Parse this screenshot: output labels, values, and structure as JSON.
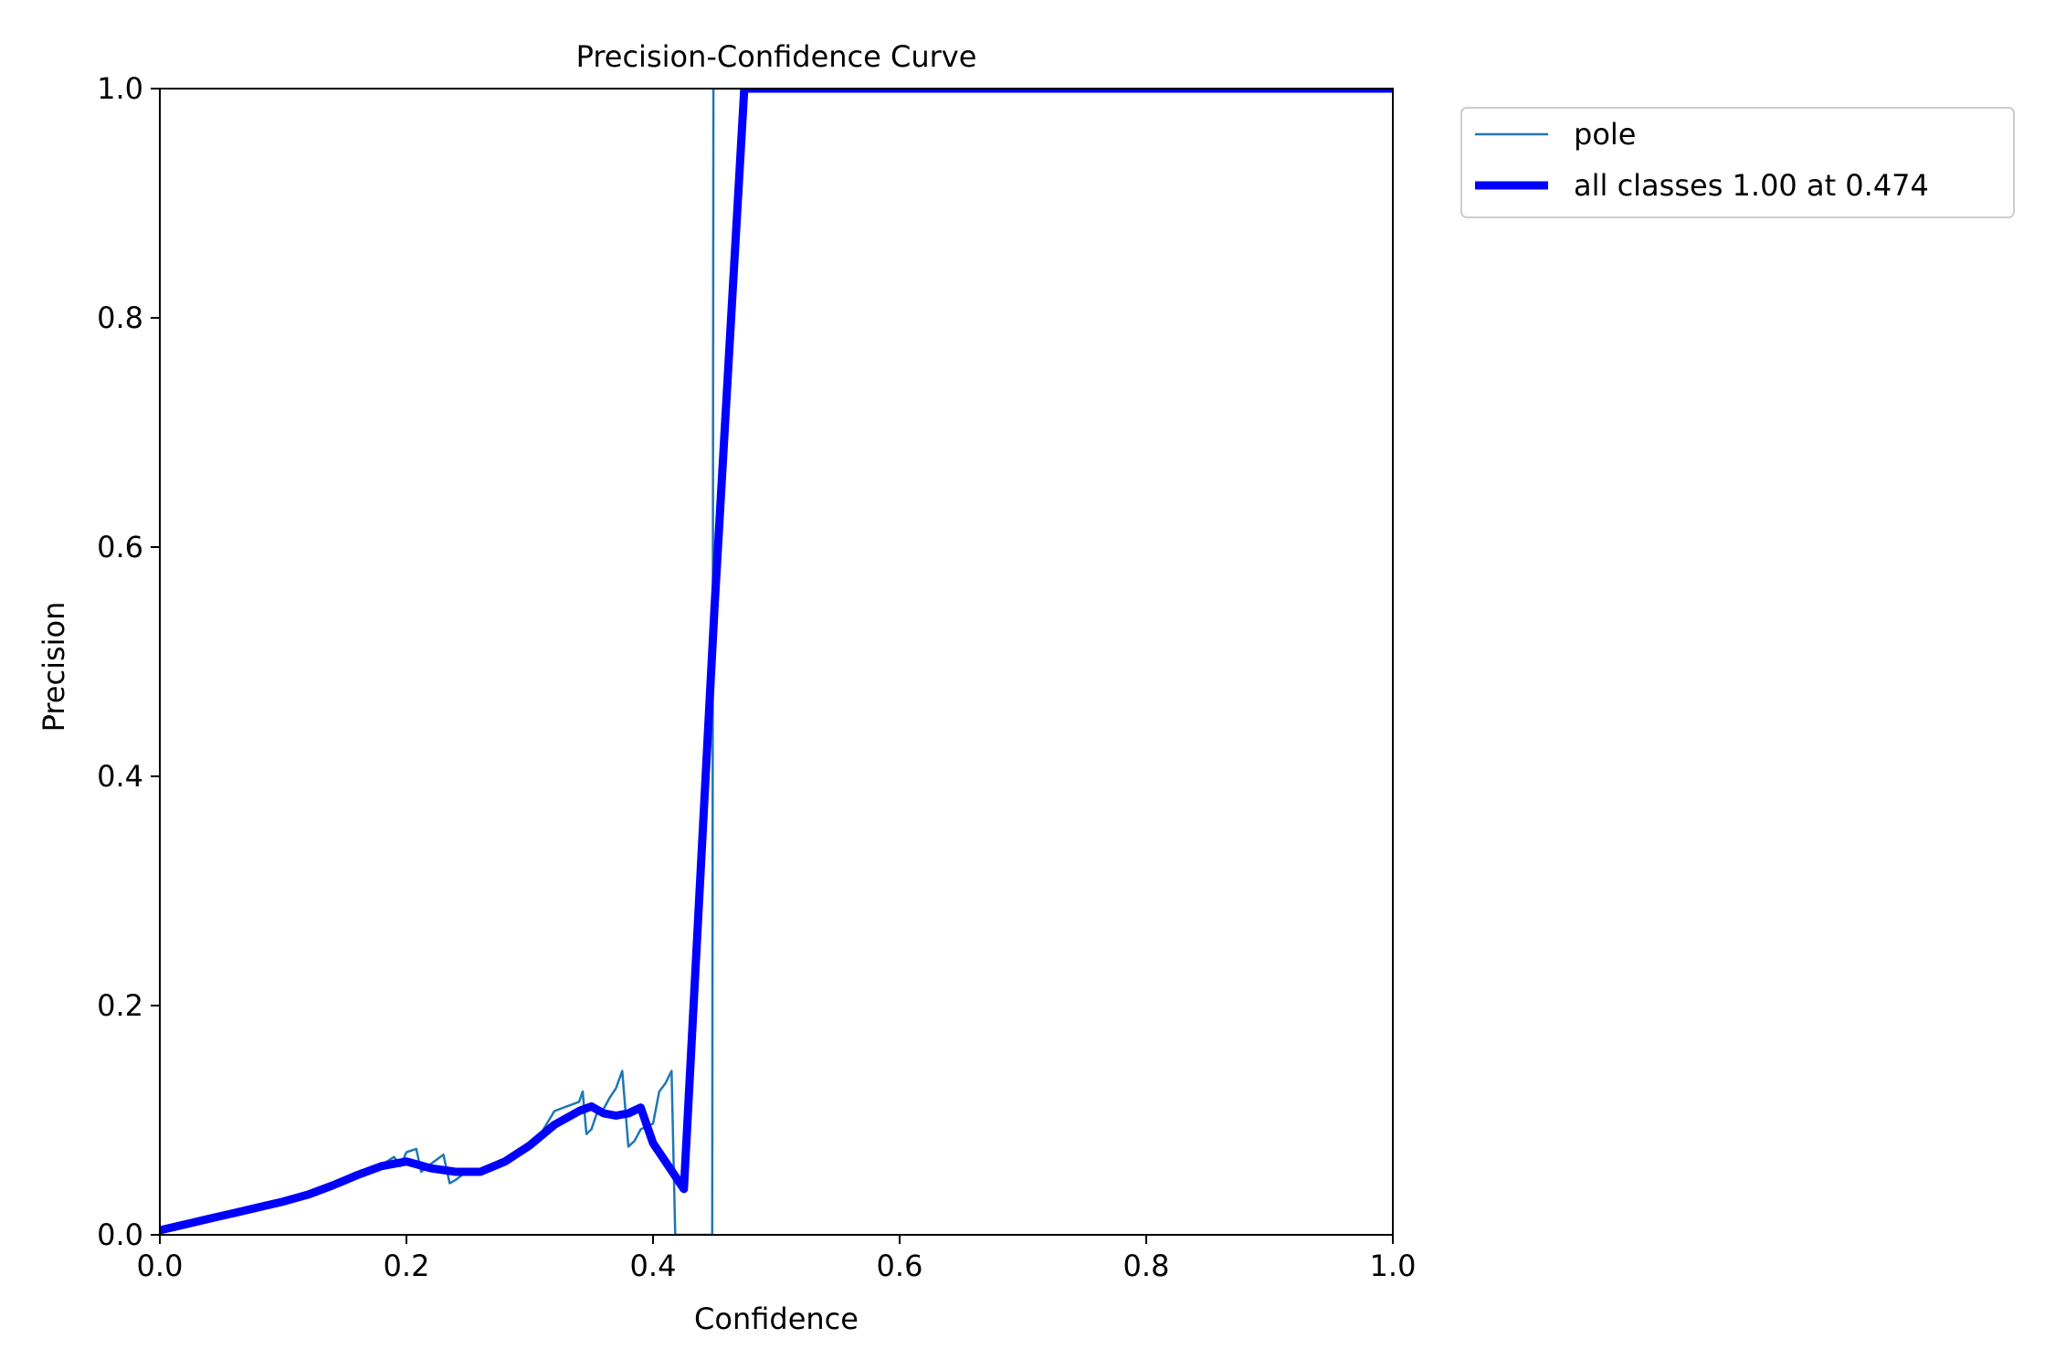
{
  "chart_data": {
    "type": "line",
    "title": "Precision-Confidence Curve",
    "xlabel": "Confidence",
    "ylabel": "Precision",
    "xlim": [
      0.0,
      1.0
    ],
    "ylim": [
      0.0,
      1.0
    ],
    "xticks": [
      "0.0",
      "0.2",
      "0.4",
      "0.6",
      "0.8",
      "1.0"
    ],
    "yticks": [
      "0.0",
      "0.2",
      "0.4",
      "0.6",
      "0.8",
      "1.0"
    ],
    "grid": false,
    "legend_position": "outside-top-right",
    "series": [
      {
        "name": "pole",
        "color": "#1f77b4",
        "points": [
          [
            0.0,
            0.004
          ],
          [
            0.02,
            0.009
          ],
          [
            0.04,
            0.014
          ],
          [
            0.06,
            0.019
          ],
          [
            0.08,
            0.024
          ],
          [
            0.1,
            0.029
          ],
          [
            0.12,
            0.035
          ],
          [
            0.14,
            0.043
          ],
          [
            0.16,
            0.052
          ],
          [
            0.18,
            0.061
          ],
          [
            0.19,
            0.068
          ],
          [
            0.195,
            0.06
          ],
          [
            0.2,
            0.072
          ],
          [
            0.208,
            0.075
          ],
          [
            0.212,
            0.055
          ],
          [
            0.22,
            0.062
          ],
          [
            0.23,
            0.07
          ],
          [
            0.235,
            0.045
          ],
          [
            0.24,
            0.048
          ],
          [
            0.25,
            0.056
          ],
          [
            0.26,
            0.056
          ],
          [
            0.28,
            0.066
          ],
          [
            0.3,
            0.08
          ],
          [
            0.31,
            0.09
          ],
          [
            0.32,
            0.108
          ],
          [
            0.33,
            0.112
          ],
          [
            0.34,
            0.116
          ],
          [
            0.343,
            0.125
          ],
          [
            0.346,
            0.088
          ],
          [
            0.35,
            0.092
          ],
          [
            0.355,
            0.108
          ],
          [
            0.36,
            0.11
          ],
          [
            0.365,
            0.12
          ],
          [
            0.37,
            0.128
          ],
          [
            0.375,
            0.143
          ],
          [
            0.38,
            0.077
          ],
          [
            0.385,
            0.082
          ],
          [
            0.39,
            0.092
          ],
          [
            0.4,
            0.097
          ],
          [
            0.405,
            0.125
          ],
          [
            0.41,
            0.132
          ],
          [
            0.415,
            0.143
          ],
          [
            0.418,
            0.0
          ],
          [
            0.448,
            0.0
          ],
          [
            0.449,
            1.0
          ],
          [
            1.0,
            1.0
          ]
        ]
      },
      {
        "name": "all classes 1.00 at 0.474",
        "color": "#0000ff",
        "points": [
          [
            0.0,
            0.004
          ],
          [
            0.02,
            0.009
          ],
          [
            0.04,
            0.014
          ],
          [
            0.06,
            0.019
          ],
          [
            0.08,
            0.024
          ],
          [
            0.1,
            0.029
          ],
          [
            0.12,
            0.035
          ],
          [
            0.14,
            0.043
          ],
          [
            0.16,
            0.052
          ],
          [
            0.18,
            0.06
          ],
          [
            0.2,
            0.064
          ],
          [
            0.22,
            0.058
          ],
          [
            0.24,
            0.055
          ],
          [
            0.26,
            0.055
          ],
          [
            0.28,
            0.064
          ],
          [
            0.3,
            0.078
          ],
          [
            0.32,
            0.096
          ],
          [
            0.34,
            0.108
          ],
          [
            0.35,
            0.112
          ],
          [
            0.36,
            0.106
          ],
          [
            0.37,
            0.104
          ],
          [
            0.38,
            0.106
          ],
          [
            0.39,
            0.111
          ],
          [
            0.4,
            0.08
          ],
          [
            0.425,
            0.04
          ],
          [
            0.45,
            0.55
          ],
          [
            0.474,
            1.0
          ],
          [
            1.0,
            1.0
          ]
        ]
      }
    ]
  }
}
